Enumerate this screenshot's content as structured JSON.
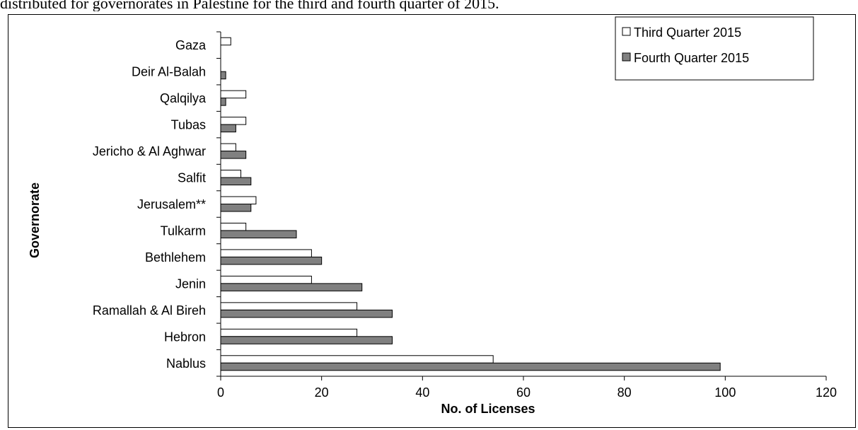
{
  "caption": "distributed for governorates in Palestine     for the third and fourth quarter of 2015.",
  "chart_data": {
    "type": "bar",
    "orientation": "horizontal",
    "title": "",
    "xlabel": "No. of Licenses",
    "ylabel": "Governorate",
    "xlim": [
      0,
      120
    ],
    "xticks": [
      0,
      20,
      40,
      60,
      80,
      100,
      120
    ],
    "grid": false,
    "legend_position": "top-right",
    "categories": [
      "Gaza",
      "Deir Al-Balah",
      "Qalqilya",
      "Tubas",
      "Jericho & Al Aghwar",
      "Salfit",
      "Jerusalem**",
      "Tulkarm",
      "Bethlehem",
      "Jenin",
      "Ramallah & Al Bireh",
      "Hebron",
      "Nablus"
    ],
    "series": [
      {
        "name": "Third Quarter 2015",
        "color": "#ffffff",
        "values": [
          2,
          0,
          5,
          5,
          3,
          4,
          7,
          5,
          18,
          18,
          27,
          27,
          54
        ]
      },
      {
        "name": "Fourth Quarter 2015",
        "color": "#808080",
        "values": [
          0,
          1,
          1,
          3,
          5,
          6,
          6,
          15,
          20,
          28,
          34,
          34,
          99
        ]
      }
    ]
  }
}
